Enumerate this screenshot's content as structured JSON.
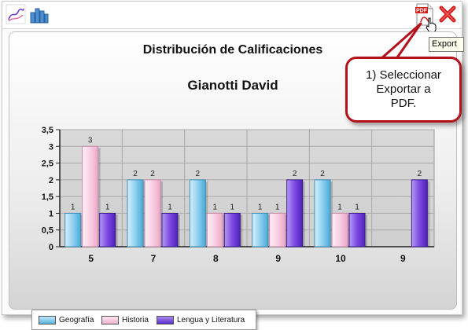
{
  "colors": {
    "geografia": "#7ec8ec",
    "historia": "#f7c6dd",
    "lengua": "#7846e0",
    "callout_border": "#b3121c",
    "close": "#d11a1a"
  },
  "toolbar": {
    "chart_type_line_icon": "line-chart-icon",
    "chart_type_bar_icon": "bar-chart-icon",
    "export_pdf_icon": "pdf-icon",
    "close_icon": "close-icon",
    "pdf_label": "PDF"
  },
  "tooltip": {
    "export": "Export"
  },
  "callout": {
    "text": "1) Seleccionar\nExportar a\nPDF."
  },
  "chart": {
    "title": "Distribución de Calificaciones",
    "subtitle": "Gianotti David"
  },
  "chart_data": {
    "type": "bar",
    "categories": [
      "5",
      "7",
      "8",
      "9",
      "10",
      "9"
    ],
    "series": [
      {
        "name": "Geografía",
        "values": [
          1,
          2,
          2,
          1,
          2,
          null
        ]
      },
      {
        "name": "Historia",
        "values": [
          3,
          2,
          1,
          1,
          1,
          null
        ]
      },
      {
        "name": "Lengua y Literatura",
        "values": [
          1,
          1,
          1,
          2,
          1,
          2
        ]
      }
    ],
    "ylim": [
      0,
      3.5
    ],
    "yticks": [
      "0",
      "0,5",
      "1",
      "1,5",
      "2",
      "2,5",
      "3",
      "3,5"
    ],
    "grid": true,
    "legend": "bottom-left",
    "data_labels": true
  }
}
